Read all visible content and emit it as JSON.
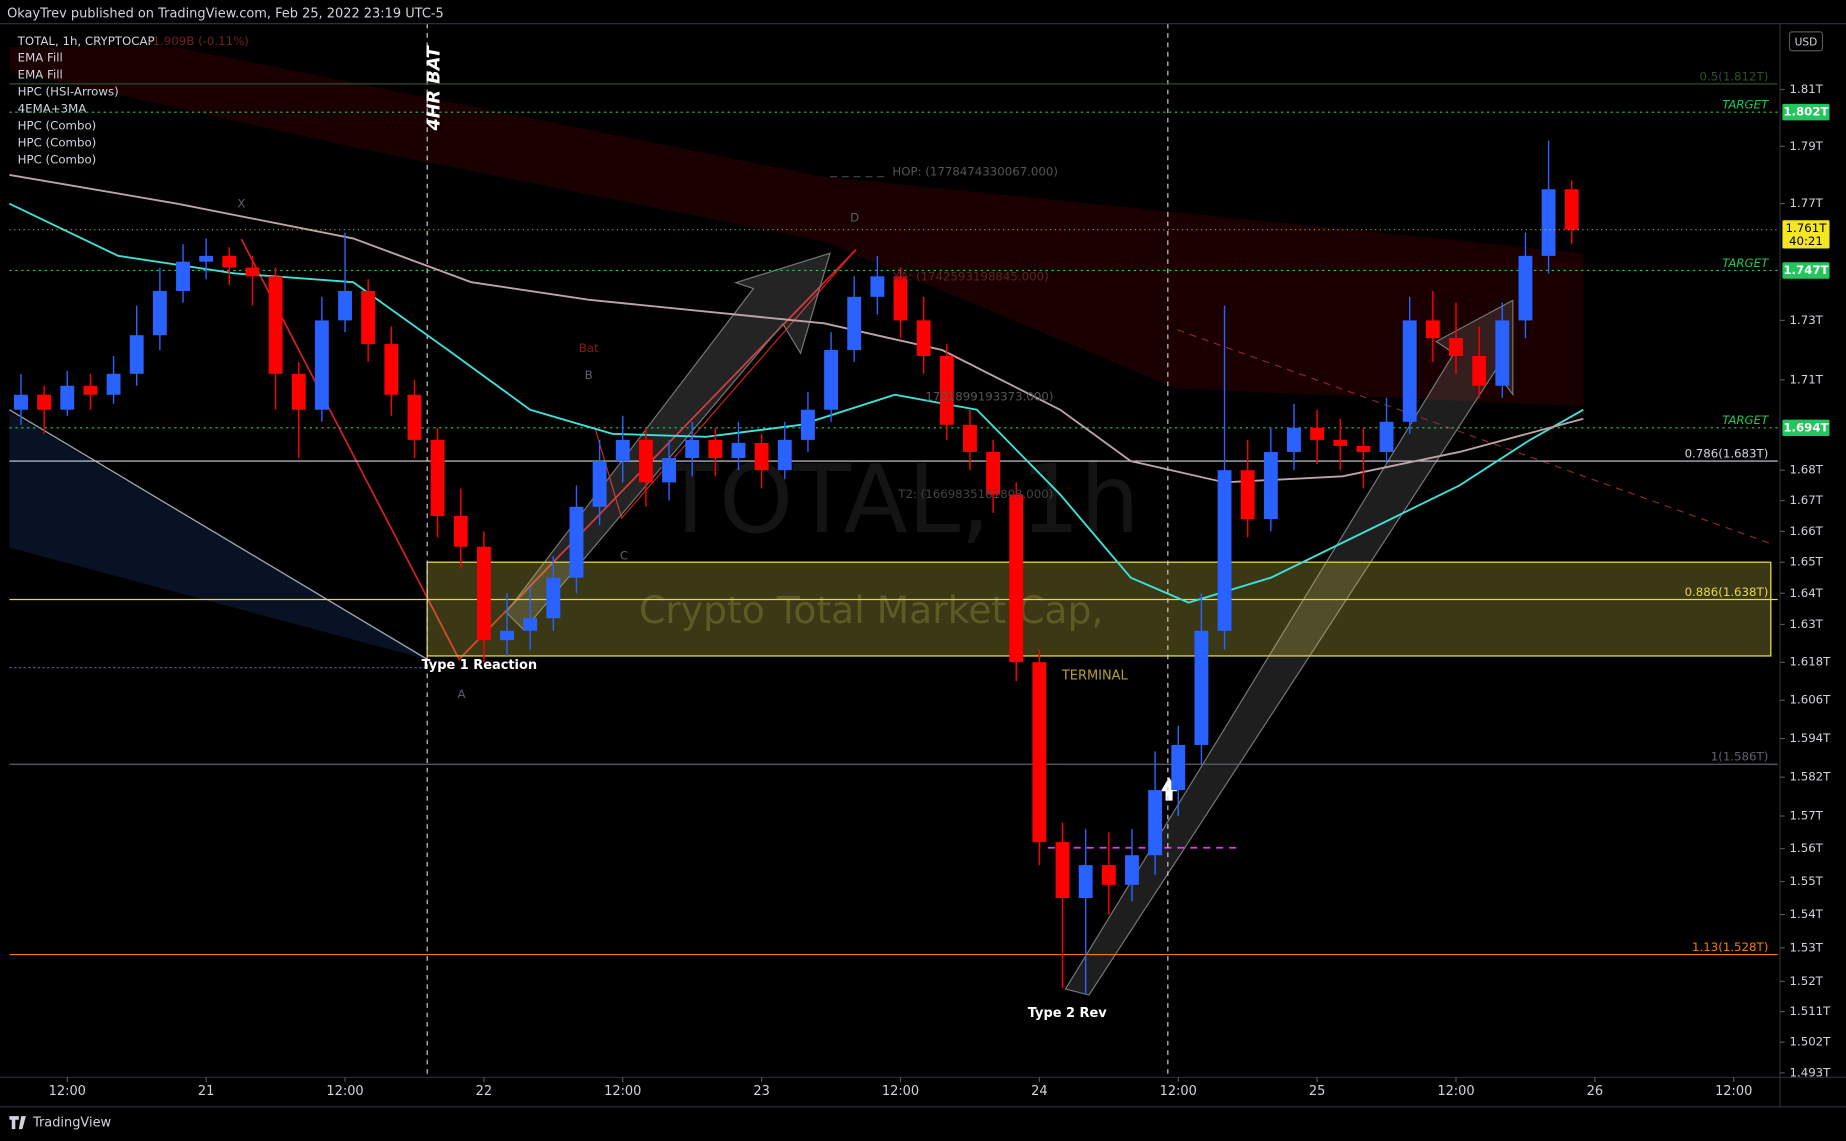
{
  "header": {
    "publisher": "OkayTrev published on TradingView.com, Feb 25, 2022 23:19 UTC-5",
    "currency": "USD",
    "footer": "TradingView"
  },
  "legend": {
    "symbol": "TOTAL, 1h, CRYPTOCAP",
    "change": "-1.909B (-0.11%)",
    "indicators": [
      "EMA Fill",
      "EMA Fill",
      "HPC (HSI-Arrows)",
      "4EMA+3MA",
      "HPC (Combo)",
      "HPC (Combo)",
      "HPC (Combo)"
    ]
  },
  "annotations": {
    "pattern": "4HR BAT",
    "x": "X",
    "a": "A",
    "b": "B",
    "c": "C",
    "d": "D",
    "bat": "Bat",
    "type1": "Type 1 Reaction",
    "type2": "Type 2 Rev",
    "terminal": "TERMINAL",
    "hop": "HOP: (1778474330067.000)",
    "xa": "XA: (1742593198845.000)",
    "mid": "1701899193373.000)",
    "t2": "T2: (1669835181803.000)",
    "watermark": "TOTAL, 1h",
    "watermark_sub": "Crypto Total Market Cap,"
  },
  "chart_data": {
    "type": "candlestick",
    "log": true,
    "grid": false,
    "up_color": "#2962ff",
    "down_color": "#ff0000",
    "x": [
      8,
      10,
      12,
      14,
      16,
      18,
      20,
      22,
      24,
      26,
      28,
      30,
      32,
      34,
      36,
      38,
      40,
      42,
      44,
      46,
      48,
      50,
      52,
      54,
      56,
      58,
      60,
      62,
      64,
      66,
      68,
      70,
      72,
      74,
      76,
      78,
      80,
      82,
      84,
      86,
      88,
      90,
      92,
      94,
      96,
      98,
      100,
      102,
      104,
      106,
      108,
      110,
      112,
      114,
      116,
      118,
      120,
      122,
      124,
      126,
      128,
      130,
      132,
      134,
      136,
      138,
      140,
      142
    ],
    "ohlc": [
      [
        1.7,
        1.712,
        1.695,
        1.705
      ],
      [
        1.705,
        1.708,
        1.692,
        1.7
      ],
      [
        1.7,
        1.713,
        1.698,
        1.708
      ],
      [
        1.708,
        1.712,
        1.7,
        1.705
      ],
      [
        1.705,
        1.718,
        1.702,
        1.712
      ],
      [
        1.712,
        1.735,
        1.708,
        1.725
      ],
      [
        1.725,
        1.748,
        1.72,
        1.74
      ],
      [
        1.74,
        1.756,
        1.736,
        1.75
      ],
      [
        1.75,
        1.758,
        1.744,
        1.752
      ],
      [
        1.752,
        1.755,
        1.742,
        1.748
      ],
      [
        1.748,
        1.752,
        1.735,
        1.745
      ],
      [
        1.745,
        1.748,
        1.7,
        1.712
      ],
      [
        1.712,
        1.716,
        1.684,
        1.7
      ],
      [
        1.7,
        1.738,
        1.696,
        1.73
      ],
      [
        1.73,
        1.76,
        1.726,
        1.74
      ],
      [
        1.74,
        1.744,
        1.716,
        1.722
      ],
      [
        1.722,
        1.728,
        1.698,
        1.705
      ],
      [
        1.705,
        1.71,
        1.684,
        1.69
      ],
      [
        1.69,
        1.694,
        1.658,
        1.665
      ],
      [
        1.665,
        1.674,
        1.648,
        1.655
      ],
      [
        1.655,
        1.66,
        1.618,
        1.625
      ],
      [
        1.625,
        1.64,
        1.62,
        1.628
      ],
      [
        1.628,
        1.642,
        1.622,
        1.632
      ],
      [
        1.632,
        1.652,
        1.628,
        1.645
      ],
      [
        1.645,
        1.675,
        1.64,
        1.668
      ],
      [
        1.668,
        1.69,
        1.662,
        1.683
      ],
      [
        1.683,
        1.698,
        1.676,
        1.69
      ],
      [
        1.69,
        1.694,
        1.668,
        1.676
      ],
      [
        1.676,
        1.69,
        1.67,
        1.684
      ],
      [
        1.684,
        1.696,
        1.678,
        1.69
      ],
      [
        1.69,
        1.694,
        1.678,
        1.684
      ],
      [
        1.684,
        1.696,
        1.68,
        1.689
      ],
      [
        1.689,
        1.692,
        1.674,
        1.68
      ],
      [
        1.68,
        1.696,
        1.677,
        1.69
      ],
      [
        1.69,
        1.706,
        1.686,
        1.7
      ],
      [
        1.7,
        1.726,
        1.696,
        1.72
      ],
      [
        1.72,
        1.745,
        1.716,
        1.738
      ],
      [
        1.738,
        1.752,
        1.732,
        1.745
      ],
      [
        1.745,
        1.748,
        1.724,
        1.73
      ],
      [
        1.73,
        1.738,
        1.712,
        1.718
      ],
      [
        1.718,
        1.722,
        1.69,
        1.695
      ],
      [
        1.695,
        1.7,
        1.68,
        1.686
      ],
      [
        1.686,
        1.69,
        1.666,
        1.672
      ],
      [
        1.672,
        1.676,
        1.612,
        1.618
      ],
      [
        1.618,
        1.622,
        1.555,
        1.562
      ],
      [
        1.562,
        1.568,
        1.518,
        1.545
      ],
      [
        1.545,
        1.566,
        1.516,
        1.555
      ],
      [
        1.555,
        1.565,
        1.54,
        1.549
      ],
      [
        1.549,
        1.566,
        1.544,
        1.558
      ],
      [
        1.558,
        1.59,
        1.552,
        1.578
      ],
      [
        1.578,
        1.598,
        1.57,
        1.592
      ],
      [
        1.592,
        1.64,
        1.586,
        1.628
      ],
      [
        1.628,
        1.735,
        1.622,
        1.68
      ],
      [
        1.68,
        1.69,
        1.658,
        1.664
      ],
      [
        1.664,
        1.694,
        1.66,
        1.686
      ],
      [
        1.686,
        1.702,
        1.68,
        1.694
      ],
      [
        1.694,
        1.7,
        1.682,
        1.69
      ],
      [
        1.69,
        1.697,
        1.68,
        1.688
      ],
      [
        1.688,
        1.694,
        1.674,
        1.686
      ],
      [
        1.686,
        1.704,
        1.682,
        1.696
      ],
      [
        1.696,
        1.738,
        1.692,
        1.73
      ],
      [
        1.73,
        1.74,
        1.716,
        1.724
      ],
      [
        1.724,
        1.736,
        1.712,
        1.718
      ],
      [
        1.718,
        1.728,
        1.704,
        1.708
      ],
      [
        1.708,
        1.736,
        1.704,
        1.73
      ],
      [
        1.73,
        1.76,
        1.724,
        1.752
      ],
      [
        1.752,
        1.792,
        1.746,
        1.775
      ],
      [
        1.775,
        1.778,
        1.756,
        1.761
      ]
    ],
    "xlim": [
      7,
      159.8
    ],
    "xticks": [
      {
        "value": 12,
        "label": "12:00"
      },
      {
        "value": 24,
        "label": "21"
      },
      {
        "value": 36,
        "label": "12:00"
      },
      {
        "value": 48,
        "label": "22"
      },
      {
        "value": 60,
        "label": "12:00"
      },
      {
        "value": 72,
        "label": "23"
      },
      {
        "value": 84,
        "label": "12:00"
      },
      {
        "value": 96,
        "label": "24"
      },
      {
        "value": 108,
        "label": "12:00"
      },
      {
        "value": 120,
        "label": "25"
      },
      {
        "value": 132,
        "label": "12:00"
      },
      {
        "value": 144,
        "label": "26"
      },
      {
        "value": 156,
        "label": "12:00"
      }
    ],
    "ylim": [
      1.4917,
      1.8335
    ],
    "yticks": [
      {
        "value": 1.81,
        "label": "1.81T"
      },
      {
        "value": 1.79,
        "label": "1.79T"
      },
      {
        "value": 1.77,
        "label": "1.77T"
      },
      {
        "value": 1.73,
        "label": "1.73T"
      },
      {
        "value": 1.71,
        "label": "1.71T"
      },
      {
        "value": 1.68,
        "label": "1.68T"
      },
      {
        "value": 1.67,
        "label": "1.67T"
      },
      {
        "value": 1.66,
        "label": "1.66T"
      },
      {
        "value": 1.65,
        "label": "1.65T"
      },
      {
        "value": 1.64,
        "label": "1.64T"
      },
      {
        "value": 1.63,
        "label": "1.63T"
      },
      {
        "value": 1.618,
        "label": "1.618T"
      },
      {
        "value": 1.606,
        "label": "1.606T"
      },
      {
        "value": 1.594,
        "label": "1.594T"
      },
      {
        "value": 1.582,
        "label": "1.582T"
      },
      {
        "value": 1.57,
        "label": "1.57T"
      },
      {
        "value": 1.56,
        "label": "1.56T"
      },
      {
        "value": 1.55,
        "label": "1.55T"
      },
      {
        "value": 1.54,
        "label": "1.54T"
      },
      {
        "value": 1.53,
        "label": "1.53T"
      },
      {
        "value": 1.52,
        "label": "1.52T"
      },
      {
        "value": 1.511,
        "label": "1.511T"
      },
      {
        "value": 1.502,
        "label": "1.502T"
      },
      {
        "value": 1.493,
        "label": "1.493T"
      }
    ],
    "overlays": [
      {
        "color": "#3fe0d6",
        "x": [
          7,
          16.4,
          26.5,
          36.7,
          44.9,
          52,
          59.1,
          67.2,
          75.4,
          83.5,
          90.6,
          97.8,
          103.9,
          108.9,
          116,
          124.2,
          132.3,
          138.4,
          143
        ],
        "values": [
          1.77,
          1.752,
          1.746,
          1.743,
          1.72,
          1.7,
          1.692,
          1.691,
          1.695,
          1.705,
          1.7,
          1.672,
          1.645,
          1.637,
          1.645,
          1.66,
          1.675,
          1.69,
          1.7
        ]
      },
      {
        "color": "#bfa3a8",
        "x": [
          7,
          21.5,
          36.7,
          46.9,
          57.1,
          67.2,
          77.4,
          87.6,
          97.8,
          103.9,
          112,
          122.2,
          132.3,
          143
        ],
        "values": [
          1.78,
          1.77,
          1.758,
          1.743,
          1.737,
          1.733,
          1.729,
          1.72,
          1.7,
          1.683,
          1.676,
          1.678,
          1.686,
          1.697
        ]
      }
    ],
    "levels": [
      {
        "label": "0.5(1.812T)",
        "value": 1.812,
        "color": "#2f4f2f"
      },
      {
        "label": "TARGET",
        "value": 1.802,
        "color": "#22c55e",
        "badge": "1.802T"
      },
      {
        "label": "TARGET",
        "value": 1.747,
        "color": "#22c55e",
        "badge": "1.747T"
      },
      {
        "label": "TARGET",
        "value": 1.694,
        "color": "#22c55e",
        "badge": "1.694T"
      },
      {
        "label": "0.786(1.683T)",
        "value": 1.683,
        "color": "#d1d4dc"
      },
      {
        "label": "0.886(1.638T)",
        "value": 1.638,
        "color": "#e6d84a"
      },
      {
        "label": "1(1.586T)",
        "value": 1.586,
        "color": "#5d606b"
      },
      {
        "label": "1.13(1.528T)",
        "value": 1.528,
        "color": "#f57c00"
      }
    ],
    "zone": {
      "low": 1.62,
      "high": 1.65,
      "start": 43.1,
      "end": 159.2,
      "color": "#d4c84a"
    },
    "vlines": [
      43.1,
      107.1
    ],
    "last": {
      "value": 1.761,
      "label": "1.761T",
      "countdown": "40:21",
      "color": "#f5e625"
    }
  }
}
